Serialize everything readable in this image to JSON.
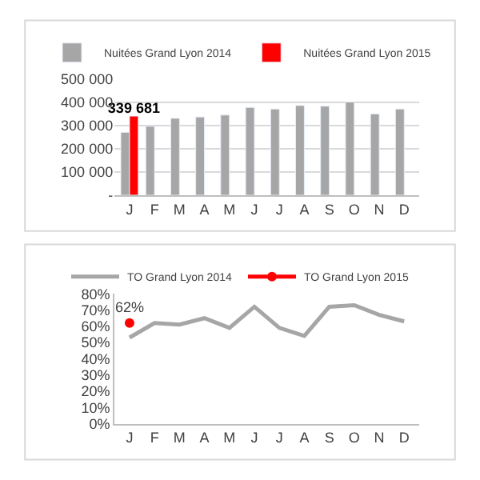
{
  "chart_data": [
    {
      "type": "bar",
      "categories": [
        "J",
        "F",
        "M",
        "A",
        "M",
        "J",
        "J",
        "A",
        "S",
        "O",
        "N",
        "D"
      ],
      "series": [
        {
          "name": "Nuitées Grand Lyon 2014",
          "color": "#a6a6a6",
          "values": [
            270000,
            296000,
            330000,
            336000,
            344000,
            377000,
            370000,
            385000,
            382000,
            400000,
            349000,
            370000
          ]
        },
        {
          "name": "Nuitées Grand Lyon 2015",
          "color": "#ff0000",
          "values": [
            339681,
            null,
            null,
            null,
            null,
            null,
            null,
            null,
            null,
            null,
            null,
            null
          ],
          "value_labels": [
            "339 681",
            null,
            null,
            null,
            null,
            null,
            null,
            null,
            null,
            null,
            null,
            null
          ]
        }
      ],
      "ylim": [
        0,
        500000
      ],
      "yticks": [
        {
          "value": 0,
          "label": "-"
        },
        {
          "value": 100000,
          "label": "100 000"
        },
        {
          "value": 200000,
          "label": "200 000"
        },
        {
          "value": 300000,
          "label": "300 000"
        },
        {
          "value": 400000,
          "label": "400 000"
        },
        {
          "value": 500000,
          "label": "500 000"
        }
      ],
      "grid": "y",
      "legend": "top"
    },
    {
      "type": "line",
      "categories": [
        "J",
        "F",
        "M",
        "A",
        "M",
        "J",
        "J",
        "A",
        "S",
        "O",
        "N",
        "D"
      ],
      "series": [
        {
          "name": "TO Grand Lyon 2014",
          "color": "#a6a6a6",
          "marker": "none",
          "values": [
            53,
            62,
            61,
            65,
            59,
            72,
            59,
            54,
            72,
            73,
            67,
            63
          ]
        },
        {
          "name": "TO Grand Lyon 2015",
          "color": "#ff0000",
          "marker": "circle",
          "values": [
            62,
            null,
            null,
            null,
            null,
            null,
            null,
            null,
            null,
            null,
            null,
            null
          ],
          "value_labels": [
            "62%",
            null,
            null,
            null,
            null,
            null,
            null,
            null,
            null,
            null,
            null,
            null
          ]
        }
      ],
      "ylim": [
        0,
        80
      ],
      "yticks": [
        {
          "value": 0,
          "label": "0%"
        },
        {
          "value": 10,
          "label": "10%"
        },
        {
          "value": 20,
          "label": "20%"
        },
        {
          "value": 30,
          "label": "30%"
        },
        {
          "value": 40,
          "label": "40%"
        },
        {
          "value": 50,
          "label": "50%"
        },
        {
          "value": 60,
          "label": "60%"
        },
        {
          "value": 70,
          "label": "70%"
        },
        {
          "value": 80,
          "label": "80%"
        }
      ],
      "grid": false,
      "legend": "top"
    }
  ]
}
